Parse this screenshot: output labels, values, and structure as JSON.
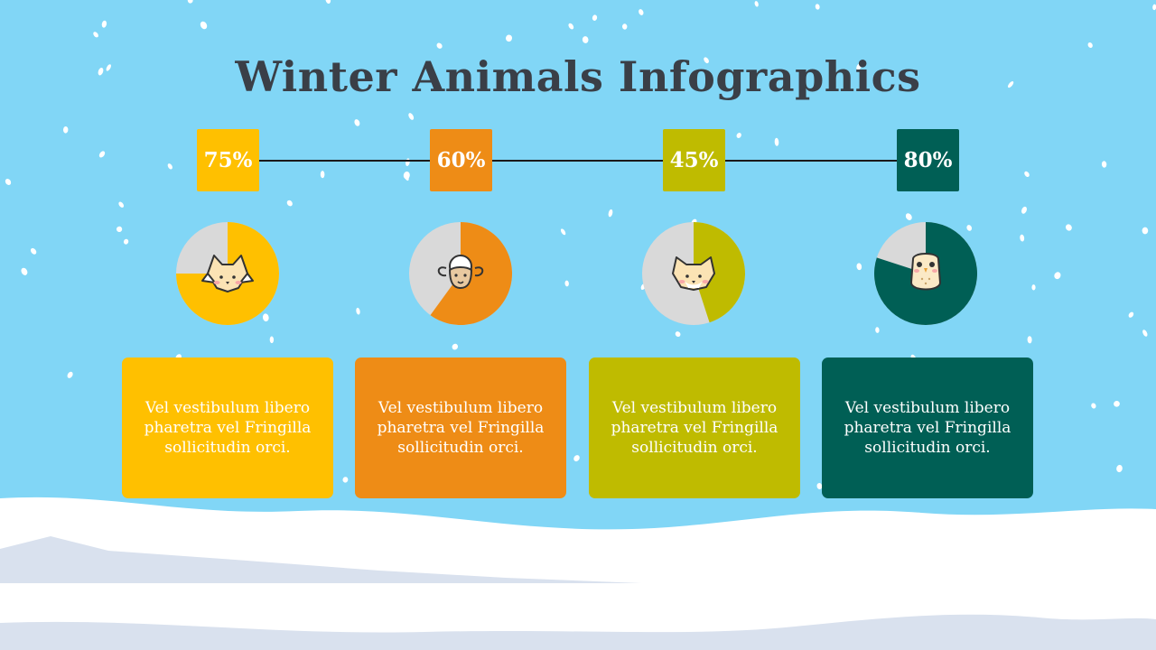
{
  "slide": {
    "title": "Winter Animals Infographics"
  },
  "colors": {
    "background": "#81d6f6",
    "snow": "#ffffff",
    "hills": "#d9e1ee",
    "pie_rest": "#d9d9d9",
    "title": "#3a3f47"
  },
  "items": [
    {
      "percent_label": "75%",
      "percent": 75,
      "color": "#ffc000",
      "animal": "fox-icon",
      "description": "Vel vestibulum libero pharetra vel Fringilla sollicitudin orci."
    },
    {
      "percent_label": "60%",
      "percent": 60,
      "color": "#ee8c16",
      "animal": "sheep-icon",
      "description": "Vel vestibulum libero pharetra vel Fringilla sollicitudin orci."
    },
    {
      "percent_label": "45%",
      "percent": 45,
      "color": "#bfbb00",
      "animal": "cat-icon",
      "description": "Vel vestibulum libero pharetra vel Fringilla sollicitudin orci."
    },
    {
      "percent_label": "80%",
      "percent": 80,
      "color": "#005f55",
      "animal": "owl-icon",
      "description": "Vel vestibulum libero pharetra vel Fringilla sollicitudin orci."
    }
  ]
}
